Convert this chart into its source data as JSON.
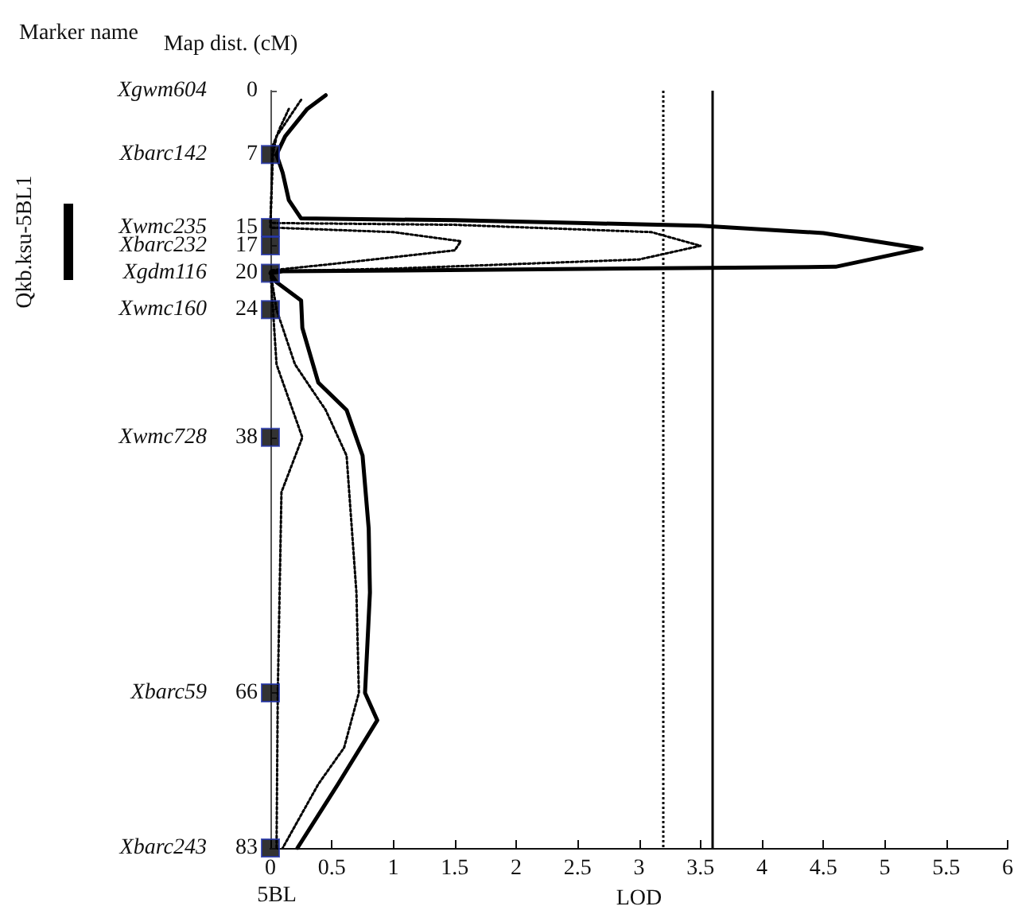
{
  "chart_data": {
    "type": "line",
    "ylabel": "Map dist. (cM)",
    "xlabel": "LOD",
    "annotations": [
      "Marker name",
      "5BL",
      "Qkb.ksu-5BL1",
      "Xgwm604",
      "Xbarc142",
      "Xwmc235",
      "Xbarc232",
      "Xgdm116",
      "Xwmc160",
      "Xwmc728",
      "Xbarc59",
      "Xbarc243"
    ],
    "xlim": [
      0,
      6
    ],
    "xticks": [
      0,
      0.5,
      1,
      1.5,
      2,
      2.5,
      3,
      3.5,
      4,
      4.5,
      5,
      5.5,
      6
    ],
    "ylim": [
      83,
      0
    ],
    "yticks": [
      0,
      7,
      15,
      17,
      20,
      24,
      38,
      66,
      83
    ],
    "grid": false,
    "series": [
      {
        "color": "#000000",
        "line_style": "solid",
        "marker": "none",
        "x": [
          0.45,
          0.3,
          0.12,
          0.05,
          0.1,
          0.15,
          0.25,
          1.5,
          2.5,
          3.5,
          4.5,
          5.3,
          4.6,
          2.0,
          0.1,
          0,
          0.05,
          0.25,
          0.26,
          0.39,
          0.62,
          0.75,
          0.8,
          0.81,
          0.77,
          0.87,
          0.55,
          0.22
        ],
        "values": [
          0.5,
          2,
          5,
          7,
          9,
          12,
          14,
          14.2,
          14.5,
          14.8,
          15.6,
          17.3,
          19.3,
          19.6,
          19.8,
          20,
          21,
          23,
          26,
          32,
          35,
          40,
          48,
          55,
          66,
          69,
          76,
          83
        ]
      },
      {
        "color": "#000000",
        "line_style": "dotted",
        "marker": "none",
        "x": [
          0.25,
          0.15,
          0.05,
          0.02,
          0,
          1.5,
          3.1,
          3.5,
          3.0,
          1.0,
          0,
          0.05,
          0.2,
          0.45,
          0.62,
          0.7,
          0.72,
          0.6,
          0.39,
          0.1
        ],
        "values": [
          1,
          3,
          5,
          7,
          14.5,
          14.7,
          15.5,
          17,
          18.5,
          19.5,
          19.8,
          24,
          30,
          35,
          40,
          55,
          66,
          72,
          76,
          83
        ]
      },
      {
        "color": "#000000",
        "line_style": "dotted",
        "marker": "none",
        "x": [
          0.15,
          0.08,
          0.02,
          0,
          1.0,
          1.55,
          1.5,
          0.5,
          0,
          0.05,
          0.26,
          0.09,
          0.06,
          0.05
        ],
        "values": [
          2,
          4,
          6,
          15,
          15.5,
          16.5,
          17.5,
          19,
          19.7,
          30,
          38,
          44,
          66,
          83
        ]
      },
      {
        "type": "scatter",
        "color": "#000000",
        "marker": "square",
        "x": [
          0,
          0,
          0,
          0,
          0,
          0,
          0,
          0
        ],
        "values": [
          7,
          15,
          17,
          20,
          24,
          38,
          66,
          83
        ]
      }
    ],
    "ref_lines": [
      {
        "axis": "x",
        "value": 3.2,
        "line_style": "dotted",
        "color": "#000000"
      },
      {
        "axis": "x",
        "value": 3.6,
        "line_style": "solid",
        "color": "#000000"
      }
    ]
  }
}
